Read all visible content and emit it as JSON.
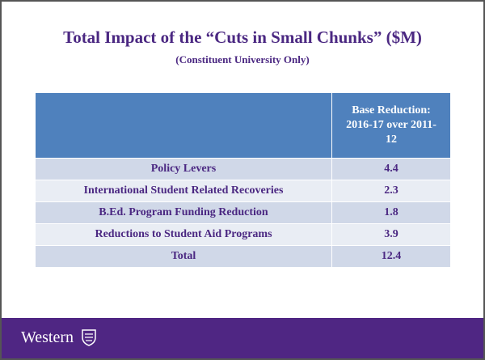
{
  "header": {
    "title": "Total Impact of the “Cuts in Small Chunks” ($M)",
    "subtitle": "(Constituent University Only)"
  },
  "table": {
    "column_header": "Base Reduction: 2016-17 over 2011-12",
    "rows": [
      [
        "Policy Levers",
        4.4
      ],
      [
        "International Student Related Recoveries",
        2.3
      ],
      [
        "B.Ed. Program Funding Reduction",
        1.8
      ],
      [
        "Reductions to Student Aid Programs",
        3.9
      ],
      [
        "Total",
        12.4
      ]
    ]
  },
  "footer": {
    "logo": "Western"
  }
}
